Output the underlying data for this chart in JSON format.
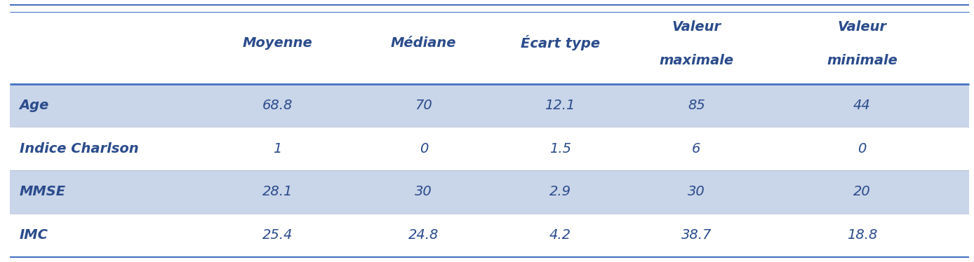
{
  "col_headers": [
    "",
    "Moyenne",
    "Médiane",
    "Écart type",
    "Valeur\nmaximale",
    "Valeur\nminimale"
  ],
  "rows": [
    [
      "Age",
      "68.8",
      "70",
      "12.1",
      "85",
      "44"
    ],
    [
      "Indice Charlson",
      "1",
      "0",
      "1.5",
      "6",
      "0"
    ],
    [
      "MMSE",
      "28.1",
      "30",
      "2.9",
      "30",
      "20"
    ],
    [
      "IMC",
      "25.4",
      "24.8",
      "4.2",
      "38.7",
      "18.8"
    ]
  ],
  "shaded_rows": [
    0,
    2
  ],
  "header_text_color": "#2B4C8C",
  "row_text_color": "#2B4C8C",
  "shaded_color": "#C9D5E8",
  "unshaded_color": "#FFFFFF",
  "top_line_color": "#4472C4",
  "bottom_line_color": "#4472C4",
  "background_color": "#FFFFFF",
  "fig_width": 13.88,
  "fig_height": 3.74,
  "header_fontsize": 14,
  "row_fontsize": 14,
  "dpi": 100
}
